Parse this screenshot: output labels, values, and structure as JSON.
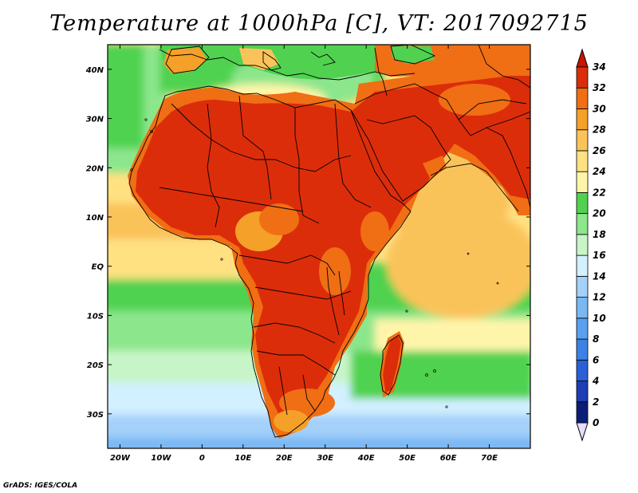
{
  "title": "Temperature at 1000hPa [C], VT: 2017092715",
  "credit": "GrADS: IGES/COLA",
  "map": {
    "lon_range": [
      -23,
      80
    ],
    "lat_range": [
      -37,
      45
    ],
    "lon_ticks": [
      {
        "value": -20,
        "label": "20W"
      },
      {
        "value": -10,
        "label": "10W"
      },
      {
        "value": 0,
        "label": "0"
      },
      {
        "value": 10,
        "label": "10E"
      },
      {
        "value": 20,
        "label": "20E"
      },
      {
        "value": 30,
        "label": "30E"
      },
      {
        "value": 40,
        "label": "40E"
      },
      {
        "value": 50,
        "label": "50E"
      },
      {
        "value": 60,
        "label": "60E"
      },
      {
        "value": 70,
        "label": "70E"
      }
    ],
    "lat_ticks": [
      {
        "value": 40,
        "label": "40N"
      },
      {
        "value": 30,
        "label": "30N"
      },
      {
        "value": 20,
        "label": "20N"
      },
      {
        "value": 10,
        "label": "10N"
      },
      {
        "value": 0,
        "label": "EQ"
      },
      {
        "value": -10,
        "label": "10S"
      },
      {
        "value": -20,
        "label": "20S"
      },
      {
        "value": -30,
        "label": "30S"
      }
    ]
  },
  "colorbar": {
    "levels": [
      "0",
      "2",
      "4",
      "6",
      "8",
      "10",
      "12",
      "14",
      "16",
      "18",
      "20",
      "22",
      "24",
      "26",
      "28",
      "30",
      "32",
      "34"
    ],
    "colors": [
      "#0a1e78",
      "#1e3cb4",
      "#2a5fd8",
      "#3c82e6",
      "#5aa0f0",
      "#7ab8f4",
      "#a4d0fa",
      "#d2f0ff",
      "#c8f5c8",
      "#8ce68c",
      "#50d250",
      "#fff5aa",
      "#ffe182",
      "#fac35a",
      "#f5a028",
      "#f06e14",
      "#dc2d0a"
    ],
    "under_color": "#e6dcff",
    "over_color": "#c81400"
  }
}
